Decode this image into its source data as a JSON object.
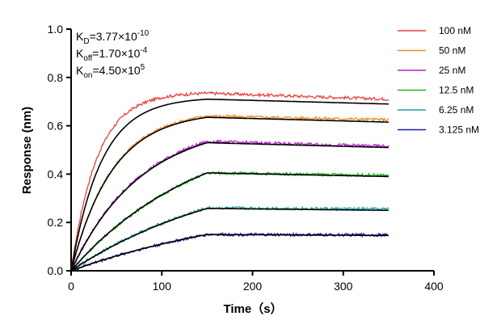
{
  "chart_data": {
    "type": "line",
    "title": "",
    "xlabel": "Time（s）",
    "ylabel": "Response (nm)",
    "xlim": [
      0,
      400
    ],
    "ylim": [
      0,
      1.0
    ],
    "x_ticks": [
      0,
      100,
      200,
      300,
      400
    ],
    "y_ticks": [
      0.0,
      0.2,
      0.4,
      0.6,
      0.8,
      1.0
    ],
    "x_tick_labels": [
      "0",
      "100",
      "200",
      "300",
      "400"
    ],
    "y_tick_labels": [
      "0.0",
      "0.2",
      "0.4",
      "0.6",
      "0.8",
      "1.0"
    ],
    "grid": false,
    "legend_position": "top-right",
    "annotations": [
      {
        "prefix": "K",
        "sub": "D",
        "mid": "=3.77×10",
        "sup": "-10"
      },
      {
        "prefix": "K",
        "sub": "off",
        "mid": "=1.70×10",
        "sup": "-4"
      },
      {
        "prefix": "K",
        "sub": "on",
        "mid": "=4.50×10",
        "sup": "5"
      }
    ],
    "association_end": 150,
    "end_time": 350,
    "series": [
      {
        "name": "100 nM",
        "color": "#e8413c",
        "peak": 0.735,
        "end": 0.71
      },
      {
        "name": "50 nM",
        "color": "#f08a24",
        "peak": 0.64,
        "end": 0.625
      },
      {
        "name": "25 nM",
        "color": "#b422c8",
        "peak": 0.535,
        "end": 0.515
      },
      {
        "name": "12.5 nM",
        "color": "#22b422",
        "peak": 0.405,
        "end": 0.395
      },
      {
        "name": "6.25 nM",
        "color": "#1fa0a0",
        "peak": 0.26,
        "end": 0.255
      },
      {
        "name": "3.125 nM",
        "color": "#1a1ab4",
        "peak": 0.15,
        "end": 0.148
      }
    ],
    "fit": {
      "color": "#000000",
      "curves": [
        {
          "peak": 0.71,
          "end": 0.69
        },
        {
          "peak": 0.635,
          "end": 0.615
        },
        {
          "peak": 0.53,
          "end": 0.51
        },
        {
          "peak": 0.405,
          "end": 0.39
        },
        {
          "peak": 0.258,
          "end": 0.25
        },
        {
          "peak": 0.15,
          "end": 0.146
        }
      ]
    }
  }
}
